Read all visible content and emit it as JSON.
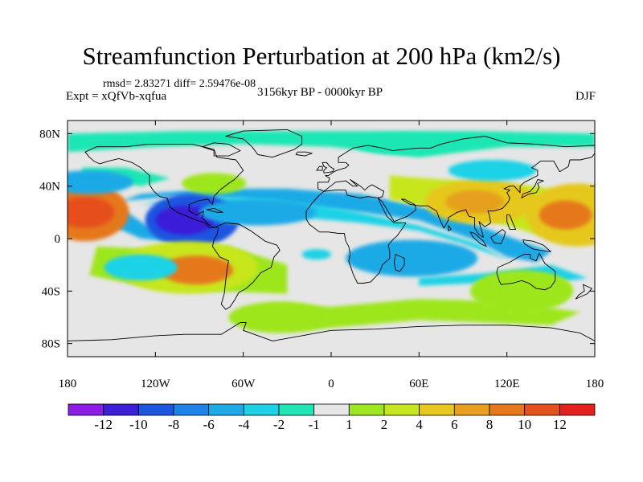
{
  "figure": {
    "title": "Streamfunction Perturbation at 200 hPa (km2/s)",
    "stats_line": "rmsd= 2.83271 diff= 2.59476e-08",
    "experiment_line": "Expt = xQfVb-xqfua",
    "period_line": "3156kyr BP - 0000kyr BP",
    "season": "DJF"
  },
  "map_data": {
    "projection": "cylindrical equidistant",
    "lon_range": [
      -180,
      180
    ],
    "lat_range": [
      -90,
      90
    ],
    "x_ticks": [
      {
        "lon": -180,
        "label": "180"
      },
      {
        "lon": -120,
        "label": "120W"
      },
      {
        "lon": -60,
        "label": "60W"
      },
      {
        "lon": 0,
        "label": "0"
      },
      {
        "lon": 60,
        "label": "60E"
      },
      {
        "lon": 120,
        "label": "120E"
      },
      {
        "lon": 180,
        "label": "180"
      }
    ],
    "y_ticks": [
      {
        "lat": 80,
        "label": "80N"
      },
      {
        "lat": 40,
        "label": "40N"
      },
      {
        "lat": 0,
        "label": "0"
      },
      {
        "lat": -40,
        "label": "40S"
      },
      {
        "lat": -80,
        "label": "80S"
      }
    ],
    "background_color": "#e6e6e6",
    "coastline_color": "#000000"
  },
  "anomalies": [
    {
      "lon": -168,
      "lat": 20,
      "rx": 30,
      "ry": 22,
      "level": 12
    },
    {
      "lon": -168,
      "lat": 20,
      "rx": 20,
      "ry": 12,
      "level": 13
    },
    {
      "lon": 168,
      "lat": 18,
      "rx": 35,
      "ry": 24,
      "level": 10
    },
    {
      "lon": 160,
      "lat": 18,
      "rx": 18,
      "ry": 11,
      "level": 12
    },
    {
      "lon": -95,
      "lat": 14,
      "rx": 32,
      "ry": 20,
      "level": 2
    },
    {
      "lon": -100,
      "lat": 14,
      "rx": 20,
      "ry": 11,
      "level": 1
    },
    {
      "lon": -98,
      "lat": -22,
      "rx": 48,
      "ry": 20,
      "level": 9
    },
    {
      "lon": -92,
      "lat": -24,
      "rx": 25,
      "ry": 11,
      "level": 12
    },
    {
      "lon": -130,
      "lat": -22,
      "rx": 25,
      "ry": 10,
      "level": 5
    },
    {
      "lon": 102,
      "lat": 28,
      "rx": 38,
      "ry": 17,
      "level": 10
    },
    {
      "lon": 98,
      "lat": 28,
      "rx": 20,
      "ry": 9,
      "level": 11
    },
    {
      "lon": 55,
      "lat": -15,
      "rx": 45,
      "ry": 14,
      "level": 4
    },
    {
      "lon": 142,
      "lat": -38,
      "rx": 22,
      "ry": 10,
      "level": 9
    },
    {
      "lon": 130,
      "lat": -40,
      "rx": 35,
      "ry": 16,
      "level": 8
    },
    {
      "lon": -165,
      "lat": 43,
      "rx": 30,
      "ry": 9,
      "level": 4
    },
    {
      "lon": -50,
      "lat": 20,
      "rx": 40,
      "ry": 10,
      "level": 4
    },
    {
      "lon": 50,
      "lat": 72,
      "rx": 35,
      "ry": 8,
      "level": 6
    },
    {
      "lon": -35,
      "lat": -60,
      "rx": 35,
      "ry": 12,
      "level": 8
    },
    {
      "lon": -80,
      "lat": 42,
      "rx": 22,
      "ry": 8,
      "level": 8
    },
    {
      "lon": 110,
      "lat": 52,
      "rx": 30,
      "ry": 8,
      "level": 5
    },
    {
      "lon": -10,
      "lat": -12,
      "rx": 10,
      "ry": 4,
      "level": 5
    }
  ],
  "colorbar": {
    "colors": [
      "#8a1ee6",
      "#3a1ed8",
      "#1e55e0",
      "#1e82e6",
      "#1eaae6",
      "#1ed2e6",
      "#1ee6b4",
      "#e6e6e6",
      "#9ee61e",
      "#c8e61e",
      "#e6c81e",
      "#e6a01e",
      "#e6781e",
      "#e6501e",
      "#e61e1e"
    ],
    "labels": [
      "-12",
      "-10",
      "-8",
      "-6",
      "-4",
      "-2",
      "-1",
      "1",
      "2",
      "4",
      "6",
      "8",
      "10",
      "12"
    ]
  }
}
